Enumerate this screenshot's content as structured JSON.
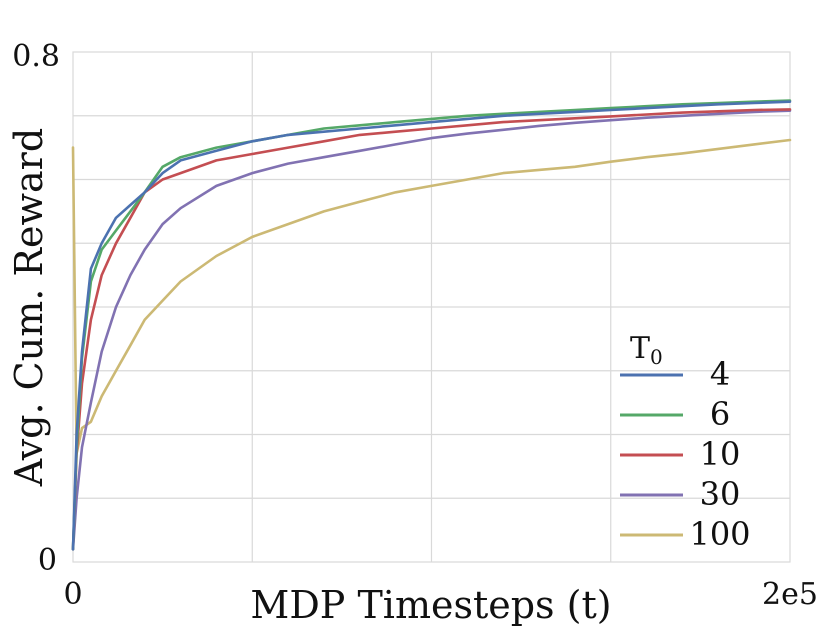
{
  "chart_data": {
    "type": "line",
    "title": "",
    "xlabel": "MDP Timesteps (t)",
    "ylabel": "Avg. Cum. Reward",
    "xlim": [
      0,
      200000
    ],
    "ylim": [
      0,
      0.8
    ],
    "x_tick_labels": [
      "0",
      "2e5"
    ],
    "y_tick_labels": [
      "0",
      "0.8"
    ],
    "grid": true,
    "legend": {
      "title": "T",
      "title_subscript": "0",
      "position": "lower-right"
    },
    "x": [
      0,
      1000,
      2500,
      5000,
      8000,
      12000,
      16000,
      20000,
      25000,
      30000,
      40000,
      50000,
      60000,
      70000,
      80000,
      90000,
      100000,
      110000,
      120000,
      130000,
      140000,
      150000,
      160000,
      170000,
      180000,
      190000,
      200000
    ],
    "series": [
      {
        "name": "4",
        "color": "#4c72b0",
        "values": [
          0.02,
          0.2,
          0.33,
          0.46,
          0.5,
          0.54,
          0.56,
          0.58,
          0.61,
          0.63,
          0.645,
          0.66,
          0.67,
          0.675,
          0.68,
          0.685,
          0.69,
          0.695,
          0.7,
          0.703,
          0.706,
          0.709,
          0.712,
          0.715,
          0.718,
          0.72,
          0.722
        ]
      },
      {
        "name": "6",
        "color": "#55a868",
        "values": [
          0.02,
          0.18,
          0.32,
          0.44,
          0.49,
          0.52,
          0.55,
          0.58,
          0.62,
          0.635,
          0.65,
          0.66,
          0.67,
          0.68,
          0.685,
          0.69,
          0.695,
          0.7,
          0.703,
          0.706,
          0.709,
          0.712,
          0.715,
          0.718,
          0.72,
          0.722,
          0.724
        ]
      },
      {
        "name": "10",
        "color": "#c44e52",
        "values": [
          0.02,
          0.17,
          0.28,
          0.38,
          0.45,
          0.5,
          0.54,
          0.58,
          0.6,
          0.61,
          0.63,
          0.64,
          0.65,
          0.66,
          0.67,
          0.675,
          0.68,
          0.685,
          0.69,
          0.693,
          0.696,
          0.699,
          0.702,
          0.705,
          0.707,
          0.709,
          0.71
        ]
      },
      {
        "name": "30",
        "color": "#8172b2",
        "values": [
          0.02,
          0.1,
          0.18,
          0.25,
          0.33,
          0.4,
          0.45,
          0.49,
          0.53,
          0.555,
          0.59,
          0.61,
          0.625,
          0.635,
          0.645,
          0.655,
          0.665,
          0.672,
          0.678,
          0.684,
          0.689,
          0.693,
          0.697,
          0.7,
          0.703,
          0.706,
          0.708
        ]
      },
      {
        "name": "100",
        "color": "#ccb974",
        "values": [
          0.65,
          0.17,
          0.21,
          0.22,
          0.26,
          0.3,
          0.34,
          0.38,
          0.41,
          0.44,
          0.48,
          0.51,
          0.53,
          0.55,
          0.565,
          0.58,
          0.59,
          0.6,
          0.61,
          0.615,
          0.62,
          0.628,
          0.635,
          0.641,
          0.648,
          0.655,
          0.662
        ]
      }
    ]
  }
}
